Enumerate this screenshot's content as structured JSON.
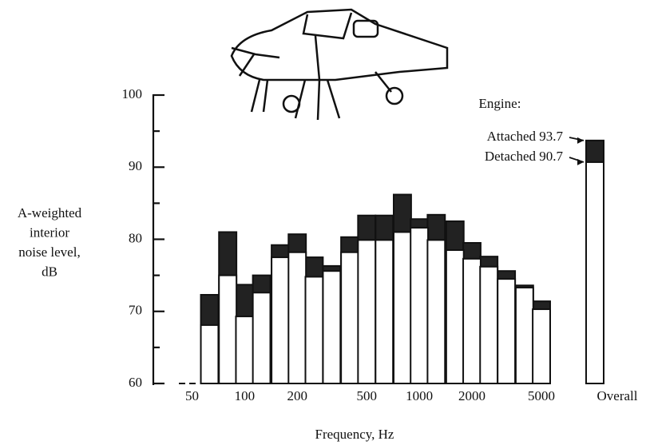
{
  "chart_data": {
    "type": "bar",
    "ylabel_lines": [
      "A-weighted",
      "interior",
      "noise level,",
      "dB"
    ],
    "xlabel": "Frequency, Hz",
    "x": [
      63,
      80,
      100,
      125,
      160,
      200,
      250,
      315,
      400,
      500,
      630,
      800,
      1000,
      1250,
      1600,
      2000,
      2500,
      3150,
      4000,
      5000
    ],
    "series": [
      {
        "name": "Attached",
        "color": "#222222",
        "values": [
          72.3,
          81.0,
          73.7,
          75.0,
          79.2,
          80.7,
          77.5,
          76.3,
          80.3,
          83.3,
          83.3,
          86.2,
          82.8,
          83.4,
          82.5,
          79.5,
          77.6,
          75.6,
          73.6,
          71.4
        ]
      },
      {
        "name": "Detached",
        "color": "#ffffff",
        "values": [
          68.1,
          75.0,
          69.3,
          72.6,
          77.5,
          78.2,
          74.8,
          75.6,
          78.2,
          79.9,
          79.9,
          81.0,
          81.6,
          79.9,
          78.5,
          77.3,
          76.2,
          74.5,
          73.3,
          70.3
        ]
      }
    ],
    "overall": {
      "label": "Overall",
      "values": [
        93.7,
        90.7
      ]
    },
    "legend_title": "Engine:",
    "ylim": [
      60,
      100
    ],
    "yticks": [
      60,
      70,
      80,
      90,
      100
    ],
    "yminor_ticks": [
      65,
      75,
      85,
      95
    ],
    "xlim": [
      30,
      6300
    ],
    "xscale": "log",
    "xticks": [
      50,
      100,
      200,
      500,
      1000,
      2000,
      5000
    ]
  }
}
